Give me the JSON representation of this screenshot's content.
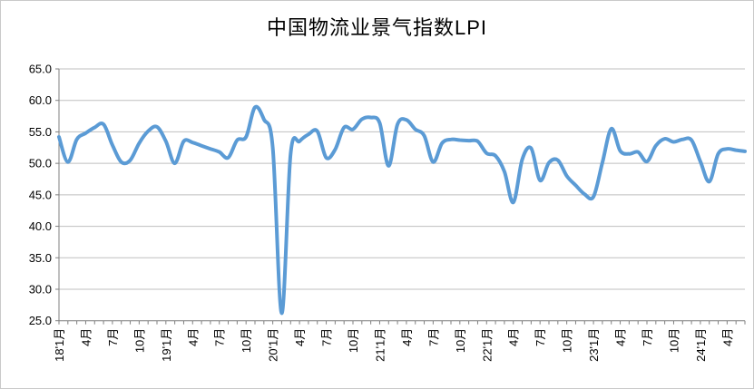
{
  "chart_data": {
    "type": "line",
    "title": "中国物流业景气指数LPI",
    "grid": "horizontal-only",
    "legend": "none",
    "y_axis": {
      "min": 25.0,
      "max": 65.0,
      "step": 5.0,
      "tick_labels": [
        "25.0",
        "30.0",
        "35.0",
        "40.0",
        "45.0",
        "50.0",
        "55.0",
        "60.0",
        "65.0"
      ]
    },
    "x_axis": {
      "total_months": 78,
      "minor_tick_every_months": 1,
      "label_every_months": 3,
      "tick_labels": [
        "18'1月",
        "4月",
        "7月",
        "10月",
        "19'1月",
        "4月",
        "7月",
        "10月",
        "20'1月",
        "4月",
        "7月",
        "10月",
        "21'1月",
        "4月",
        "7月",
        "10月",
        "22'1月",
        "4月",
        "7月",
        "10月",
        "23'1月",
        "4月",
        "7月",
        "10月",
        "24'1月",
        "4月"
      ]
    },
    "series": [
      {
        "name": "LPI",
        "color": "#5B9BD5",
        "start_month": "2018-01",
        "end_month": "2024-06",
        "values": [
          54.2,
          50.2,
          53.8,
          54.8,
          55.7,
          56.2,
          52.9,
          50.2,
          50.5,
          53.2,
          55.1,
          55.8,
          53.5,
          50.0,
          53.5,
          53.3,
          52.8,
          52.3,
          51.8,
          50.9,
          53.7,
          54.2,
          58.9,
          57.0,
          52.5,
          26.2,
          51.5,
          53.5,
          54.6,
          55.1,
          50.9,
          52.2,
          55.7,
          55.4,
          57.0,
          57.3,
          56.4,
          49.6,
          56.2,
          56.9,
          55.4,
          54.4,
          50.2,
          53.2,
          53.8,
          53.7,
          53.6,
          53.5,
          51.6,
          51.2,
          48.7,
          43.8,
          50.6,
          52.4,
          47.3,
          50.1,
          50.5,
          48.0,
          46.5,
          45.1,
          44.7,
          50.1,
          55.5,
          52.0,
          51.5,
          51.8,
          50.3,
          52.8,
          53.9,
          53.4,
          53.8,
          53.7,
          50.3,
          47.1,
          51.5,
          52.3,
          52.1,
          51.9
        ]
      }
    ],
    "colors": {
      "line": "#5B9BD5",
      "gridline": "#BFBFBF",
      "axis": "#7F7F7F",
      "text": "#000000",
      "border": "#C9C9C9"
    }
  }
}
